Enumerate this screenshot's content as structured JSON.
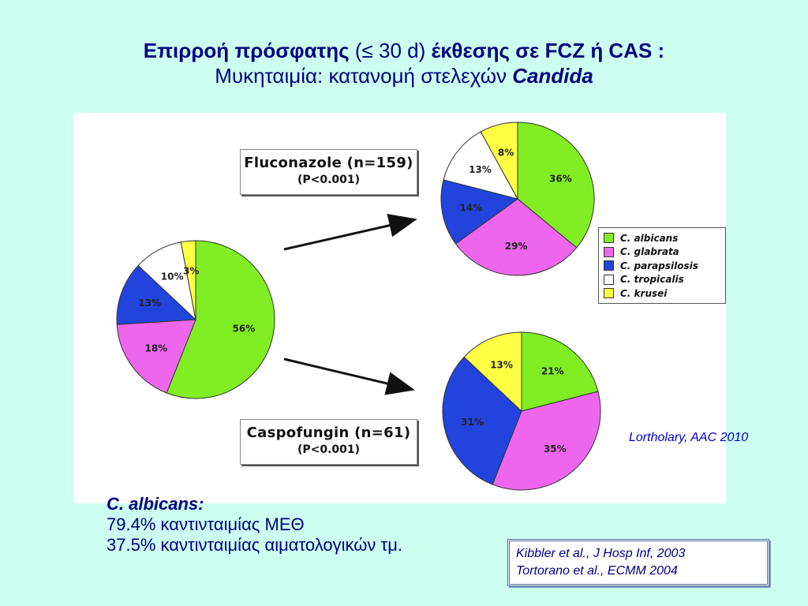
{
  "title": {
    "line1_bold_a": "Επιρροή πρόσφατης",
    "line1_normal": "(≤ 30 d)",
    "line1_bold_b": "έκθεσης σε FCZ ή CAS :",
    "line2_normal": "Μυκηταιμία: κατανομή στελεχών",
    "line2_italic": "Candida"
  },
  "boxes": {
    "fluconazole_name": "Fluconazole (n=159)",
    "fluconazole_p": "(P<0.001)",
    "caspofungin_name": "Caspofungin (n=61)",
    "caspofungin_p": "(P<0.001)"
  },
  "legend": [
    {
      "label": "C. albicans",
      "color": "#80ee22"
    },
    {
      "label": "C. glabrata",
      "color": "#ee66ee"
    },
    {
      "label": "C. parapsilosis",
      "color": "#2244dd"
    },
    {
      "label": "C. tropicalis",
      "color": "#ffffff"
    },
    {
      "label": "C. krusei",
      "color": "#ffff44"
    }
  ],
  "chart_data": [
    {
      "type": "pie",
      "name": "overall",
      "categories": [
        "C. albicans",
        "C. glabrata",
        "C. parapsilosis",
        "C. tropicalis",
        "C. krusei"
      ],
      "values": [
        56,
        18,
        13,
        10,
        3
      ],
      "labels": [
        "56%",
        "18%",
        "13%",
        "10%",
        "3%"
      ]
    },
    {
      "type": "pie",
      "name": "fluconazole",
      "categories": [
        "C. albicans",
        "C. glabrata",
        "C. parapsilosis",
        "C. tropicalis",
        "C. krusei"
      ],
      "values": [
        36,
        29,
        14,
        13,
        8
      ],
      "labels": [
        "36%",
        "29%",
        "14%",
        "13%",
        "8%"
      ]
    },
    {
      "type": "pie",
      "name": "caspofungin",
      "categories": [
        "C. albicans",
        "C. glabrata",
        "C. parapsilosis",
        "C. krusei"
      ],
      "values": [
        21,
        35,
        31,
        13
      ],
      "labels": [
        "21%",
        "35%",
        "31%",
        "13%"
      ]
    }
  ],
  "reference_lortholary": "Lortholary, AAC 2010",
  "bottom": {
    "heading": "C. albicans:",
    "line1": "79.4% καντινταιμίας ΜΕΘ",
    "line2": "37.5% καντινταιμίας αιματολογικών τμ."
  },
  "citations": {
    "line1": "Kibbler et al., J Hosp Inf, 2003",
    "line2": "Tortorano et al., ECMM 2004"
  }
}
